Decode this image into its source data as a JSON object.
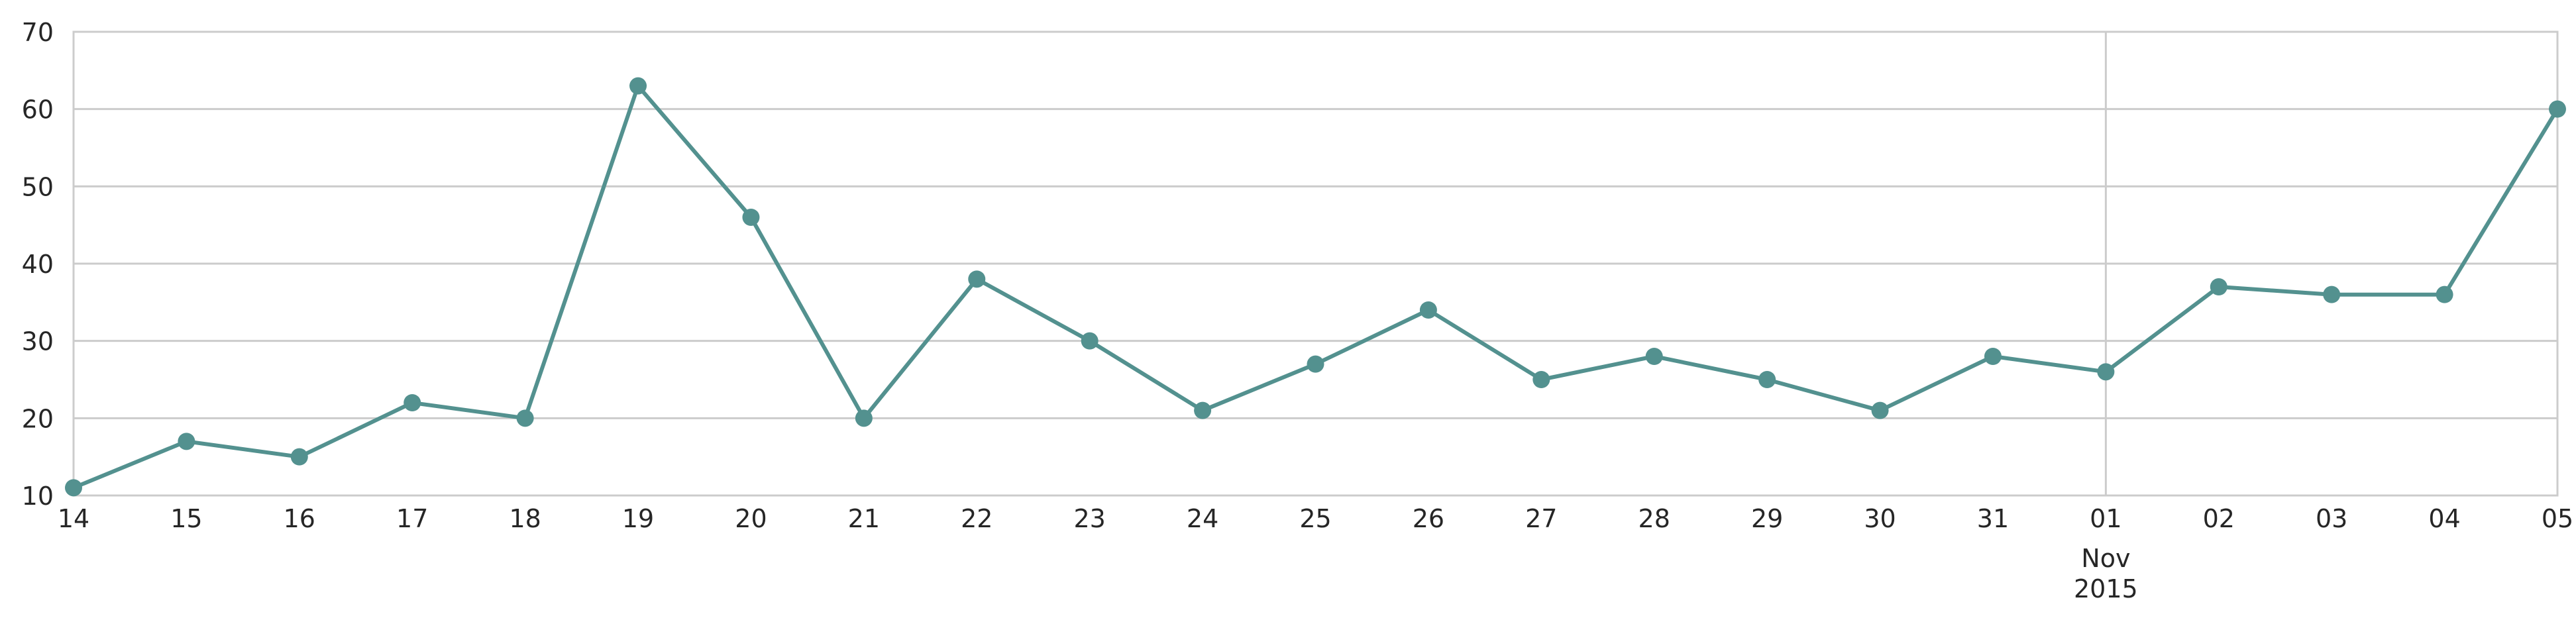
{
  "chart_data": {
    "type": "line",
    "x": [
      "2015-10-14",
      "2015-10-15",
      "2015-10-16",
      "2015-10-17",
      "2015-10-18",
      "2015-10-19",
      "2015-10-20",
      "2015-10-21",
      "2015-10-22",
      "2015-10-23",
      "2015-10-24",
      "2015-10-25",
      "2015-10-26",
      "2015-10-27",
      "2015-10-28",
      "2015-10-29",
      "2015-10-30",
      "2015-10-31",
      "2015-11-01",
      "2015-11-02",
      "2015-11-03",
      "2015-11-04",
      "2015-11-05"
    ],
    "x_tick_labels": [
      "14",
      "15",
      "16",
      "17",
      "18",
      "19",
      "20",
      "21",
      "22",
      "23",
      "24",
      "25",
      "26",
      "27",
      "28",
      "29",
      "30",
      "31",
      "01",
      "02",
      "03",
      "04",
      "05"
    ],
    "x_major_label": {
      "index": 18,
      "lines": [
        "Nov",
        "2015"
      ]
    },
    "series": [
      {
        "values": [
          11,
          17,
          15,
          22,
          20,
          63,
          46,
          20,
          38,
          30,
          21,
          27,
          34,
          25,
          28,
          25,
          21,
          28,
          26,
          37,
          36,
          36,
          60
        ]
      }
    ],
    "y_ticks": [
      10,
      20,
      30,
      40,
      50,
      60,
      70
    ],
    "ylim": [
      10,
      70
    ],
    "title": "",
    "xlabel": "",
    "ylabel": "",
    "grid": "horizontal, plus vertical at month boundary",
    "colors": {
      "line": "#53918F",
      "grid": "#CCCCCC",
      "text": "#262626"
    }
  }
}
